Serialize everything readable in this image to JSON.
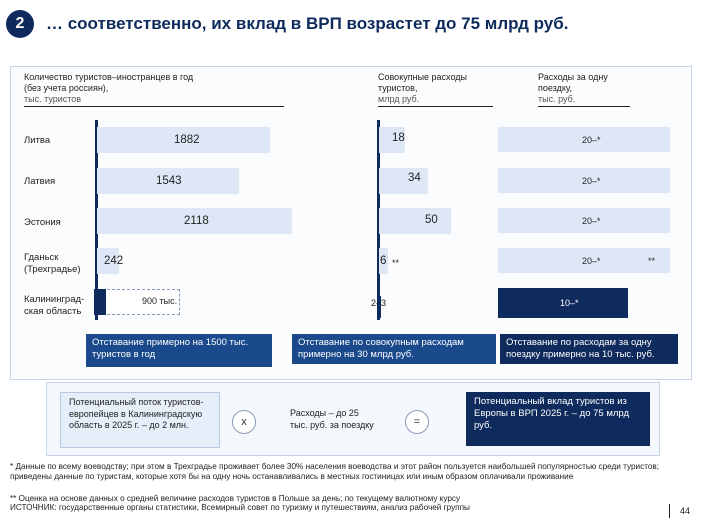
{
  "header": {
    "badge": "2",
    "title": "… соответственно, их вклад в ВРП возрастет до 75 млрд руб."
  },
  "columns": {
    "tourists": {
      "line1": "Количество туристов–иностранцев в год",
      "line2": "(без учета россиян),",
      "unit": "тыс. туристов"
    },
    "spending": {
      "line1": "Совокупные расходы",
      "line2": "туристов,",
      "unit": "млрд руб."
    },
    "per_trip": {
      "line1": "Расходы за одну",
      "line2": "поездку,",
      "unit": "тыс. руб."
    }
  },
  "chart_data": {
    "type": "bar",
    "categories": [
      "Литва",
      "Латвия",
      "Эстония",
      "Гданьск (Трехградье)",
      "Калининградская область"
    ],
    "series": [
      {
        "values": [
          1882,
          1543,
          2118,
          242,
          900
        ]
      },
      {
        "values": [
          18,
          34,
          50,
          6,
          2.5
        ]
      },
      {
        "values": [
          20,
          20,
          20,
          20,
          10
        ]
      }
    ],
    "value_labels": {
      "tourists": [
        "1882",
        "1543",
        "2118",
        "242",
        "900 тыс."
      ],
      "spending": [
        "18",
        "34",
        "50",
        "6",
        "2–3"
      ],
      "per_trip": [
        "20–*",
        "20–*",
        "20–*",
        "20–*",
        "10–*"
      ]
    },
    "footnote_marks": {
      "gdansk_spending": "**",
      "gdansk_per_trip": "**"
    }
  },
  "rows": [
    {
      "label": "Литва"
    },
    {
      "label": "Латвия"
    },
    {
      "label": "Эстония"
    },
    {
      "label1": "Гданьск",
      "label2": "(Трехградье)"
    },
    {
      "label1": "Калининград-",
      "label2": "ская область"
    }
  ],
  "callouts": {
    "tourists": "Отставание примерно на 1500 тыс. туристов в год",
    "spending": "Отставание по совокупным расходам примерно на 30 млрд руб.",
    "per_trip": "Отставание по расходам за одну поездку примерно на 10 тыс. руб."
  },
  "flow": {
    "box1": "Потенциальный поток туристов-европейцев в Калининградскую область в 2025 г. – до 2 млн.",
    "op1": "x",
    "box2": "Расходы – до 25 тыс. руб. за поездку",
    "op2": "=",
    "box3": "Потенциальный вклад туристов из Европы в ВРП 2025 г. – до 75 млрд руб."
  },
  "footnotes": {
    "f1": "* Данные по всему воеводству; при этом в Трехградье проживает более 30% населения воеводства и этот район пользуется наибольшей популярностью среди туристов; приведены данные по туристам, которые хотя бы на одну ночь останавливались в местных гостиницах или иным образом оплачивали проживание",
    "f2": "** Оценка на основе данных о средней величине расходов туристов в Польше за день; по текущему валютному курсу",
    "source": "ИСТОЧНИК: государственные органы статистики, Всемирный совет по туризму и путешествиям, анализ рабочей группы"
  },
  "page_number": "44"
}
